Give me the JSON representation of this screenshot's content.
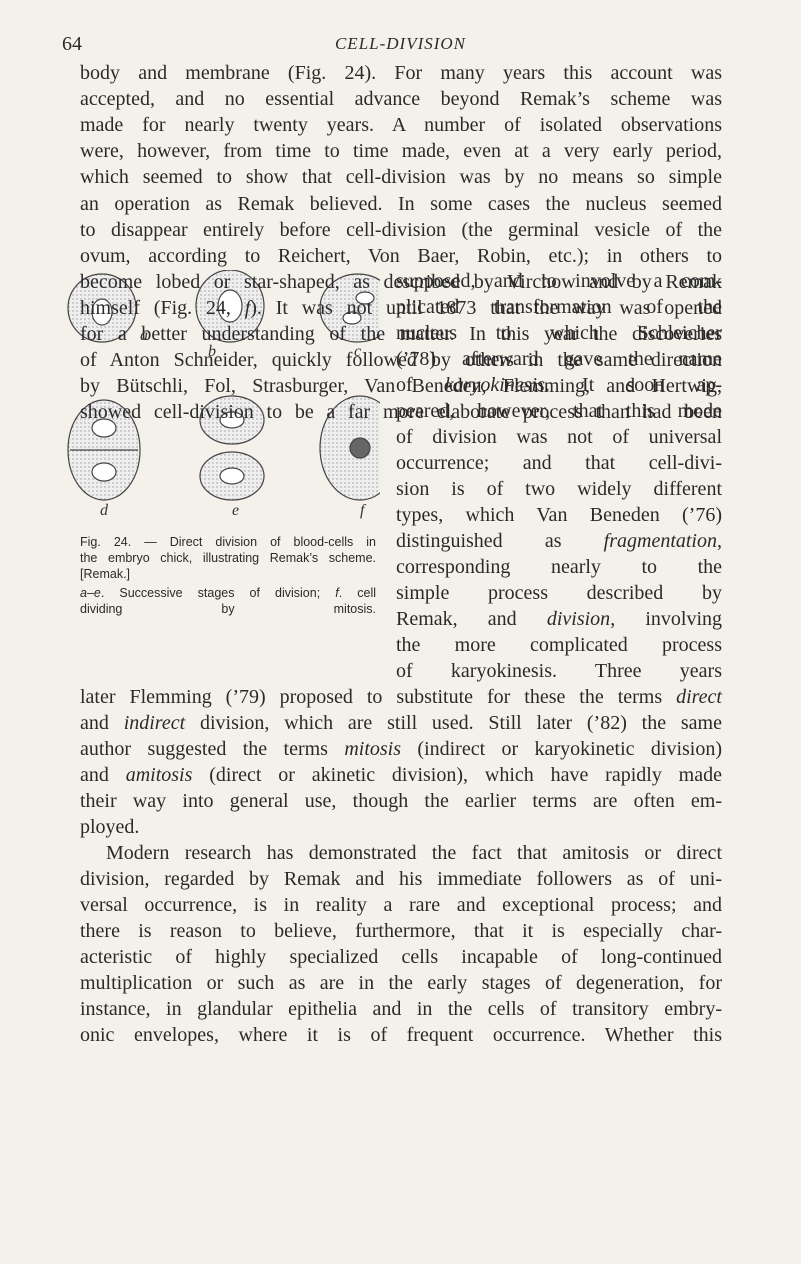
{
  "header": {
    "page_number": "64",
    "running_title": "CELL-DIVISION"
  },
  "body_top": [
    "body and membrane (Fig. 24). For many years this account was",
    "accepted, and no essential advance beyond Remak’s scheme was",
    "made for nearly twenty years. A number of isolated observations",
    "were, however, from time to time made, even at a very early period,",
    "which seemed to show that cell-division was by no means so simple",
    "an operation as Remak believed. In some cases the nucleus seemed",
    "to disappear entirely before cell-division (the germinal vesicle of the",
    "ovum, according to Reichert, Von Baer, Robin, etc.); in others to",
    "become lobed or star-shaped, as described by Virchow and by Remak",
    [
      "himself (Fig. 24, ",
      "f",
      "). It was not until 1873 that the way was opened"
    ],
    "for a better understanding of the matter. In this year the discoveries",
    "of Anton Schneider, quickly followed by others in the same direction",
    "by Bütschli, Fol, Strasburger, Van Beneden, Flemming, and Hertwig,",
    "showed cell-division to be a far more elaborate process than had been"
  ],
  "body_right": [
    "supposed, and to involve a com-",
    "plicated transformation of the",
    "nucleus to which Schleicher",
    "(’78) afterward gave the name",
    [
      "of ",
      "karyokinesis",
      ". It soon ap-"
    ],
    "peared, however, that this mode",
    "of division was not of universal",
    "occurrence; and that cell-divi-",
    "sion is of two widely different",
    "types, which Van Beneden (’76)",
    [
      "distinguished as ",
      "fragmentation",
      ","
    ],
    "corresponding nearly to the",
    "simple process described by",
    [
      "Remak, and ",
      "division",
      ", involving"
    ],
    "the more complicated process",
    "of karyokinesis. Three years"
  ],
  "body_bottom": [
    [
      "later Flemming (’79) proposed to substitute for these the terms ",
      "direct"
    ],
    [
      "and ",
      "indirect",
      " division, which are still used. Still later (’82) the same"
    ],
    [
      "author suggested the terms ",
      "mitosis",
      " (indirect or karyokinetic division)"
    ],
    [
      "and ",
      "amitosis",
      " (direct or akinetic division), which have rapidly made"
    ],
    "their way into general use, though the earlier terms are often em-",
    "ployed."
  ],
  "body_para2": [
    "Modern research has demonstrated the fact that amitosis or direct",
    "division, regarded by Remak and his immediate followers as of uni-",
    "versal occurrence, is in reality a rare and exceptional process; and",
    "there is reason to believe, furthermore, that it is especially char-",
    "acteristic of highly specialized cells incapable of long-continued",
    "multiplication or such as are in the early stages of degeneration, for",
    "instance, in glandular epithelia and in the cells of transitory embry-",
    "onic envelopes, where it is of frequent occurrence. Whether this"
  ],
  "figure": {
    "labels": [
      "a",
      "b",
      "c",
      "d",
      "e",
      "f"
    ],
    "caption": [
      "Fig. 24. — Direct division of blood-cells in",
      "the embryo chick, illustrating Remak’s scheme.",
      "[Remak.]"
    ],
    "legend": [
      [
        "",
        "a–e",
        ". Successive stages of division; ",
        "f",
        ". cell"
      ],
      "dividing by mitosis."
    ]
  }
}
